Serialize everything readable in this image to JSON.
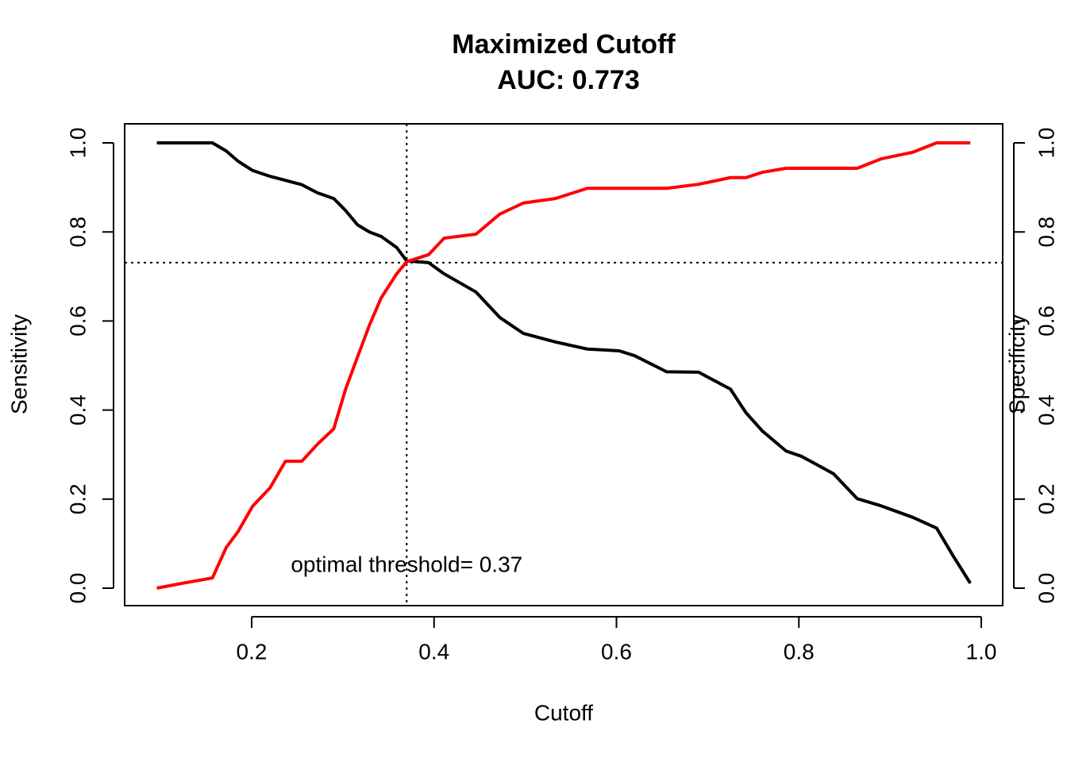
{
  "chart_data": {
    "type": "line",
    "title": "Maximized Cutoff",
    "subtitle": "AUC:  0.773",
    "x_label": "Cutoff",
    "y_label": "Sensitivity",
    "y2_label": "Specificity",
    "y2_label_color": "#ff0000",
    "annotation": "optimal threshold= 0.37",
    "vlines": [
      0.37
    ],
    "hlines": [
      0.731
    ],
    "x": [
      0.096,
      0.124,
      0.157,
      0.172,
      0.185,
      0.201,
      0.22,
      0.237,
      0.255,
      0.272,
      0.29,
      0.303,
      0.316,
      0.329,
      0.342,
      0.359,
      0.37,
      0.394,
      0.411,
      0.446,
      0.472,
      0.498,
      0.533,
      0.568,
      0.603,
      0.62,
      0.655,
      0.69,
      0.725,
      0.742,
      0.76,
      0.786,
      0.803,
      0.838,
      0.864,
      0.89,
      0.925,
      0.951,
      0.969,
      0.988
    ],
    "series": [
      {
        "name": "Sensitivity",
        "color": "#000000",
        "values": [
          1,
          1,
          1,
          0.982,
          0.959,
          0.938,
          0.925,
          0.916,
          0.906,
          0.888,
          0.875,
          0.848,
          0.816,
          0.8,
          0.79,
          0.765,
          0.735,
          0.731,
          0.706,
          0.665,
          0.608,
          0.572,
          0.553,
          0.537,
          0.533,
          0.522,
          0.486,
          0.485,
          0.447,
          0.394,
          0.353,
          0.308,
          0.296,
          0.257,
          0.201,
          0.185,
          0.159,
          0.135,
          0.073,
          0.011
        ]
      },
      {
        "name": "Specificity",
        "color": "#ff0000",
        "axis": "y2",
        "values": [
          0,
          0.011,
          0.023,
          0.091,
          0.127,
          0.184,
          0.225,
          0.285,
          0.285,
          0.323,
          0.358,
          0.447,
          0.519,
          0.59,
          0.652,
          0.706,
          0.733,
          0.749,
          0.786,
          0.795,
          0.84,
          0.865,
          0.875,
          0.898,
          0.898,
          0.898,
          0.898,
          0.907,
          0.922,
          0.922,
          0.934,
          0.943,
          0.943,
          0.943,
          0.943,
          0.964,
          0.979,
          1,
          1,
          1
        ]
      }
    ],
    "xlim": [
      0.0607,
      1.0235
    ],
    "xticks": [
      0.2,
      0.4,
      0.6,
      0.8,
      {
        "value": 1.0,
        "label": "1.0"
      }
    ],
    "ylim": [
      -0.0392,
      1.0428
    ],
    "yticks": [
      {
        "value": 0,
        "label": "0.0"
      },
      0.2,
      0.4,
      0.6,
      0.8,
      {
        "value": 1.0,
        "label": "1.0"
      }
    ],
    "y2lim": [
      -0.0392,
      1.0428
    ],
    "y2ticks": [
      {
        "value": 0,
        "label": "0.0"
      },
      0.2,
      0.4,
      0.6,
      0.8,
      {
        "value": 1.0,
        "label": "1.0"
      }
    ],
    "grid": false
  }
}
